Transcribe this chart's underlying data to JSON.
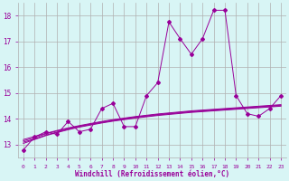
{
  "x": [
    0,
    1,
    2,
    3,
    4,
    5,
    6,
    7,
    8,
    9,
    10,
    11,
    12,
    13,
    14,
    15,
    16,
    17,
    18,
    19,
    20,
    21,
    22,
    23
  ],
  "y_main": [
    12.8,
    13.3,
    13.5,
    13.4,
    13.9,
    13.5,
    13.6,
    14.4,
    14.6,
    13.7,
    13.7,
    14.9,
    15.4,
    17.75,
    17.1,
    16.5,
    17.1,
    18.2,
    18.2,
    14.9,
    14.2,
    14.1,
    14.4,
    14.9
  ],
  "y_line1": [
    13.05,
    13.2,
    13.35,
    13.47,
    13.58,
    13.68,
    13.76,
    13.84,
    13.91,
    13.97,
    14.03,
    14.08,
    14.13,
    14.17,
    14.21,
    14.25,
    14.28,
    14.31,
    14.34,
    14.37,
    14.4,
    14.43,
    14.46,
    14.49
  ],
  "y_line2": [
    13.1,
    13.22,
    13.37,
    13.49,
    13.6,
    13.7,
    13.78,
    13.86,
    13.93,
    13.99,
    14.05,
    14.1,
    14.15,
    14.19,
    14.23,
    14.27,
    14.3,
    14.33,
    14.36,
    14.39,
    14.42,
    14.45,
    14.48,
    14.51
  ],
  "y_line3": [
    13.15,
    13.27,
    13.42,
    13.53,
    13.63,
    13.72,
    13.8,
    13.88,
    13.95,
    14.01,
    14.07,
    14.12,
    14.17,
    14.21,
    14.25,
    14.29,
    14.32,
    14.35,
    14.38,
    14.41,
    14.44,
    14.47,
    14.5,
    14.53
  ],
  "y_line4": [
    13.2,
    13.32,
    13.44,
    13.55,
    13.65,
    13.74,
    13.82,
    13.9,
    13.97,
    14.03,
    14.09,
    14.14,
    14.19,
    14.23,
    14.27,
    14.31,
    14.34,
    14.37,
    14.4,
    14.43,
    14.46,
    14.49,
    14.52,
    14.55
  ],
  "color": "#990099",
  "bg_color": "#d8f5f5",
  "grid_color": "#b0b0b0",
  "xlabel": "Windchill (Refroidissement éolien,°C)",
  "ylim": [
    12.5,
    18.5
  ],
  "xlim": [
    -0.5,
    23.5
  ],
  "yticks": [
    13,
    14,
    15,
    16,
    17,
    18
  ],
  "xticks": [
    0,
    1,
    2,
    3,
    4,
    5,
    6,
    7,
    8,
    9,
    10,
    11,
    12,
    13,
    14,
    15,
    16,
    17,
    18,
    19,
    20,
    21,
    22,
    23
  ]
}
